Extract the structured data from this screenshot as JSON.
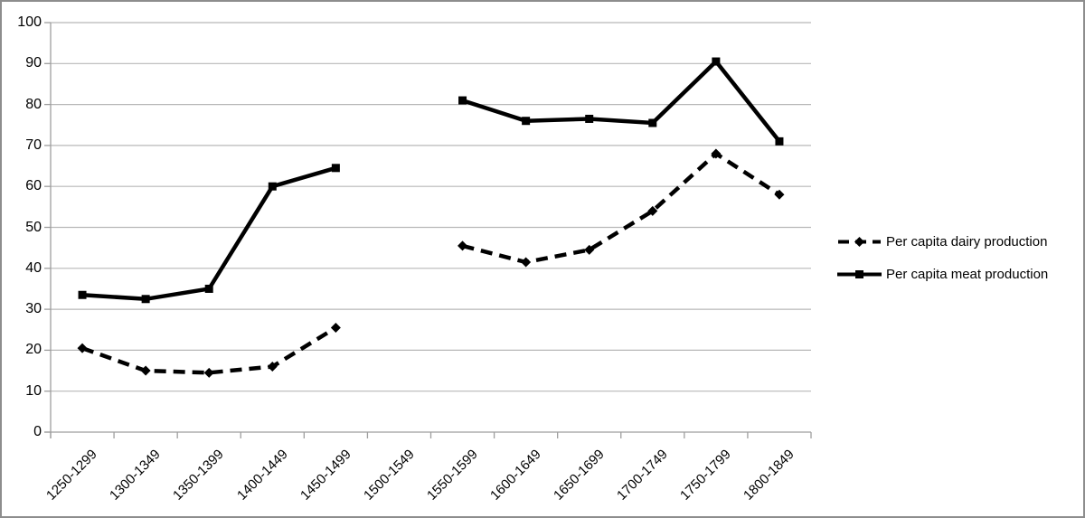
{
  "window": {
    "background_color": "#ffffff",
    "border_color": "#8d8d8d"
  },
  "chart_data": {
    "type": "line",
    "title": "",
    "xlabel": "",
    "ylabel": "",
    "categories": [
      "1250-1299",
      "1300-1349",
      "1350-1399",
      "1400-1449",
      "1450-1499",
      "1500-1549",
      "1550-1599",
      "1600-1649",
      "1650-1699",
      "1700-1749",
      "1750-1799",
      "1800-1849"
    ],
    "series": [
      {
        "name": "Per capita dairy production",
        "line_style": "dashed",
        "marker": "diamond",
        "color": "#000000",
        "values": [
          20.5,
          15,
          14.5,
          16,
          25.5,
          null,
          45.5,
          41.5,
          44.5,
          54,
          68,
          58
        ]
      },
      {
        "name": "Per capita meat production",
        "line_style": "solid",
        "marker": "square",
        "color": "#000000",
        "values": [
          33.5,
          32.5,
          35,
          60,
          64.5,
          null,
          81,
          76,
          76.5,
          75.5,
          90.5,
          71
        ]
      }
    ],
    "ylim": [
      0,
      100
    ],
    "yticks": [
      0,
      10,
      20,
      30,
      40,
      50,
      60,
      70,
      80,
      90,
      100
    ],
    "ytick_labels": [
      "0",
      "10",
      "20",
      "30",
      "40",
      "50",
      "60",
      "70",
      "80",
      "90",
      "100"
    ],
    "grid": true,
    "grid_color": "#b8b8b8",
    "axis_color": "#9e9e9e",
    "legend_position": "right"
  }
}
